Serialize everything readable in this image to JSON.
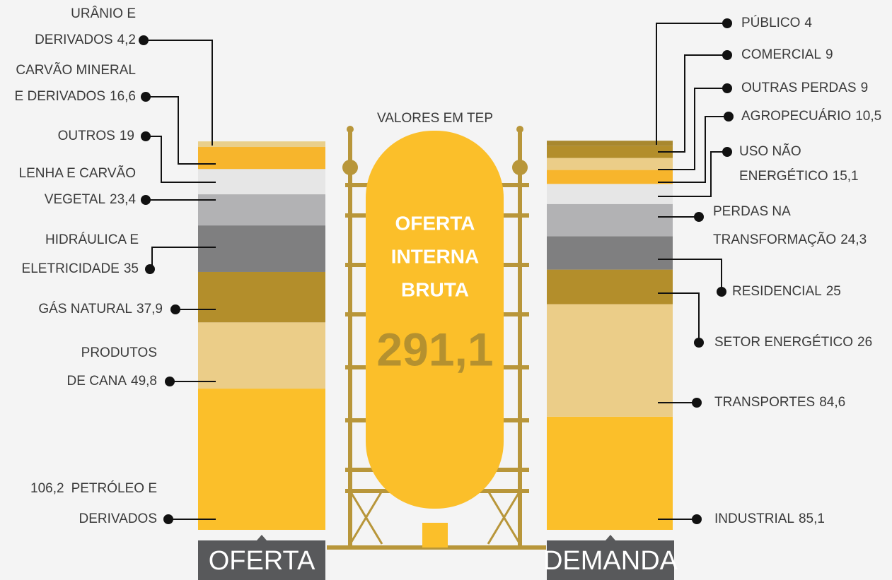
{
  "subtitle": "VALORES EM TEP",
  "center": {
    "lines": [
      "OFERTA",
      "INTERNA",
      "BRUTA"
    ],
    "value": 291.1,
    "value_label": "291,1"
  },
  "chart_data": [
    {
      "type": "stacked_column",
      "title": "OFERTA",
      "categories": [
        [
          "PETRÓLEO E",
          "DERIVADOS"
        ],
        [
          "PRODUTOS",
          "DE CANA"
        ],
        [
          "GÁS NATURAL"
        ],
        [
          "HIDRÁULICA E",
          "ELETRICIDADE"
        ],
        [
          "LENHA E CARVÃO",
          "VEGETAL"
        ],
        [
          "OUTROS"
        ],
        [
          "CARVÃO MINERAL",
          "E DERIVADOS"
        ],
        [
          "URÂNIO E",
          "DERIVADOS"
        ]
      ],
      "values": [
        106.2,
        49.8,
        37.9,
        35,
        23.4,
        19,
        16.6,
        4.2
      ],
      "value_labels": [
        "106,2",
        "49,8",
        "37,9",
        "35",
        "23,4",
        "19",
        "16,6",
        "4,2"
      ],
      "colors": [
        "#fbbf2a",
        "#ebcd88",
        "#b38e2b",
        "#7f7f80",
        "#b2b2b4",
        "#e6e6e6",
        "#f7b52c",
        "#e9cf8b"
      ]
    },
    {
      "type": "stacked_column",
      "title": "DEMANDA",
      "categories": [
        [
          "INDUSTRIAL"
        ],
        [
          "TRANSPORTES"
        ],
        [
          "SETOR ENERGÉTICO"
        ],
        [
          "RESIDENCIAL"
        ],
        [
          "PERDAS NA",
          "TRANSFORMAÇÃO"
        ],
        [
          "USO NÃO",
          "ENERGÉTICO"
        ],
        [
          "AGROPECUÁRIO"
        ],
        [
          "OUTRAS PERDAS"
        ],
        [
          "COMERCIAL"
        ],
        [
          "PÚBLICO"
        ]
      ],
      "values": [
        85.1,
        84.6,
        26,
        25,
        24.3,
        15.1,
        10.5,
        9,
        9,
        4
      ],
      "value_labels": [
        "85,1",
        "84,6",
        "26",
        "25",
        "24,3",
        "15,1",
        "10,5",
        "9",
        "9",
        "4"
      ],
      "colors": [
        "#fbbf2a",
        "#ebcd88",
        "#b38e2b",
        "#7f7f80",
        "#b2b2b4",
        "#e6e6e6",
        "#f7b52c",
        "#ebcd88",
        "#b38e2b",
        "#a8882f"
      ]
    }
  ]
}
